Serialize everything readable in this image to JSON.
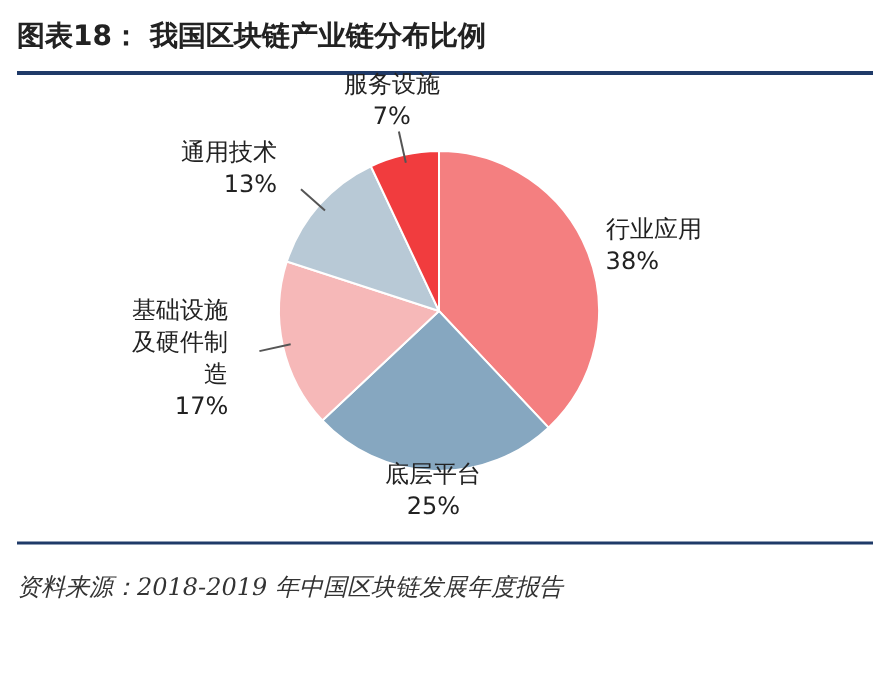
{
  "chart_data": {
    "type": "pie",
    "title": "图表18：  我国区块链产业链分布比例",
    "categories": [
      "行业应用",
      "底层平台",
      "基础设施及硬件制造",
      "通用技术",
      "服务设施"
    ],
    "values": [
      38,
      25,
      17,
      13,
      7
    ],
    "colors": [
      "#f47f80",
      "#86a7c0",
      "#f6b8b8",
      "#b8c9d6",
      "#f13c3e"
    ],
    "value_labels": [
      "38%",
      "25%",
      "17%",
      "13%",
      "7%"
    ],
    "annotations": [
      "资料来源：2018-2019 年中国区块链发展年度报告"
    ]
  }
}
